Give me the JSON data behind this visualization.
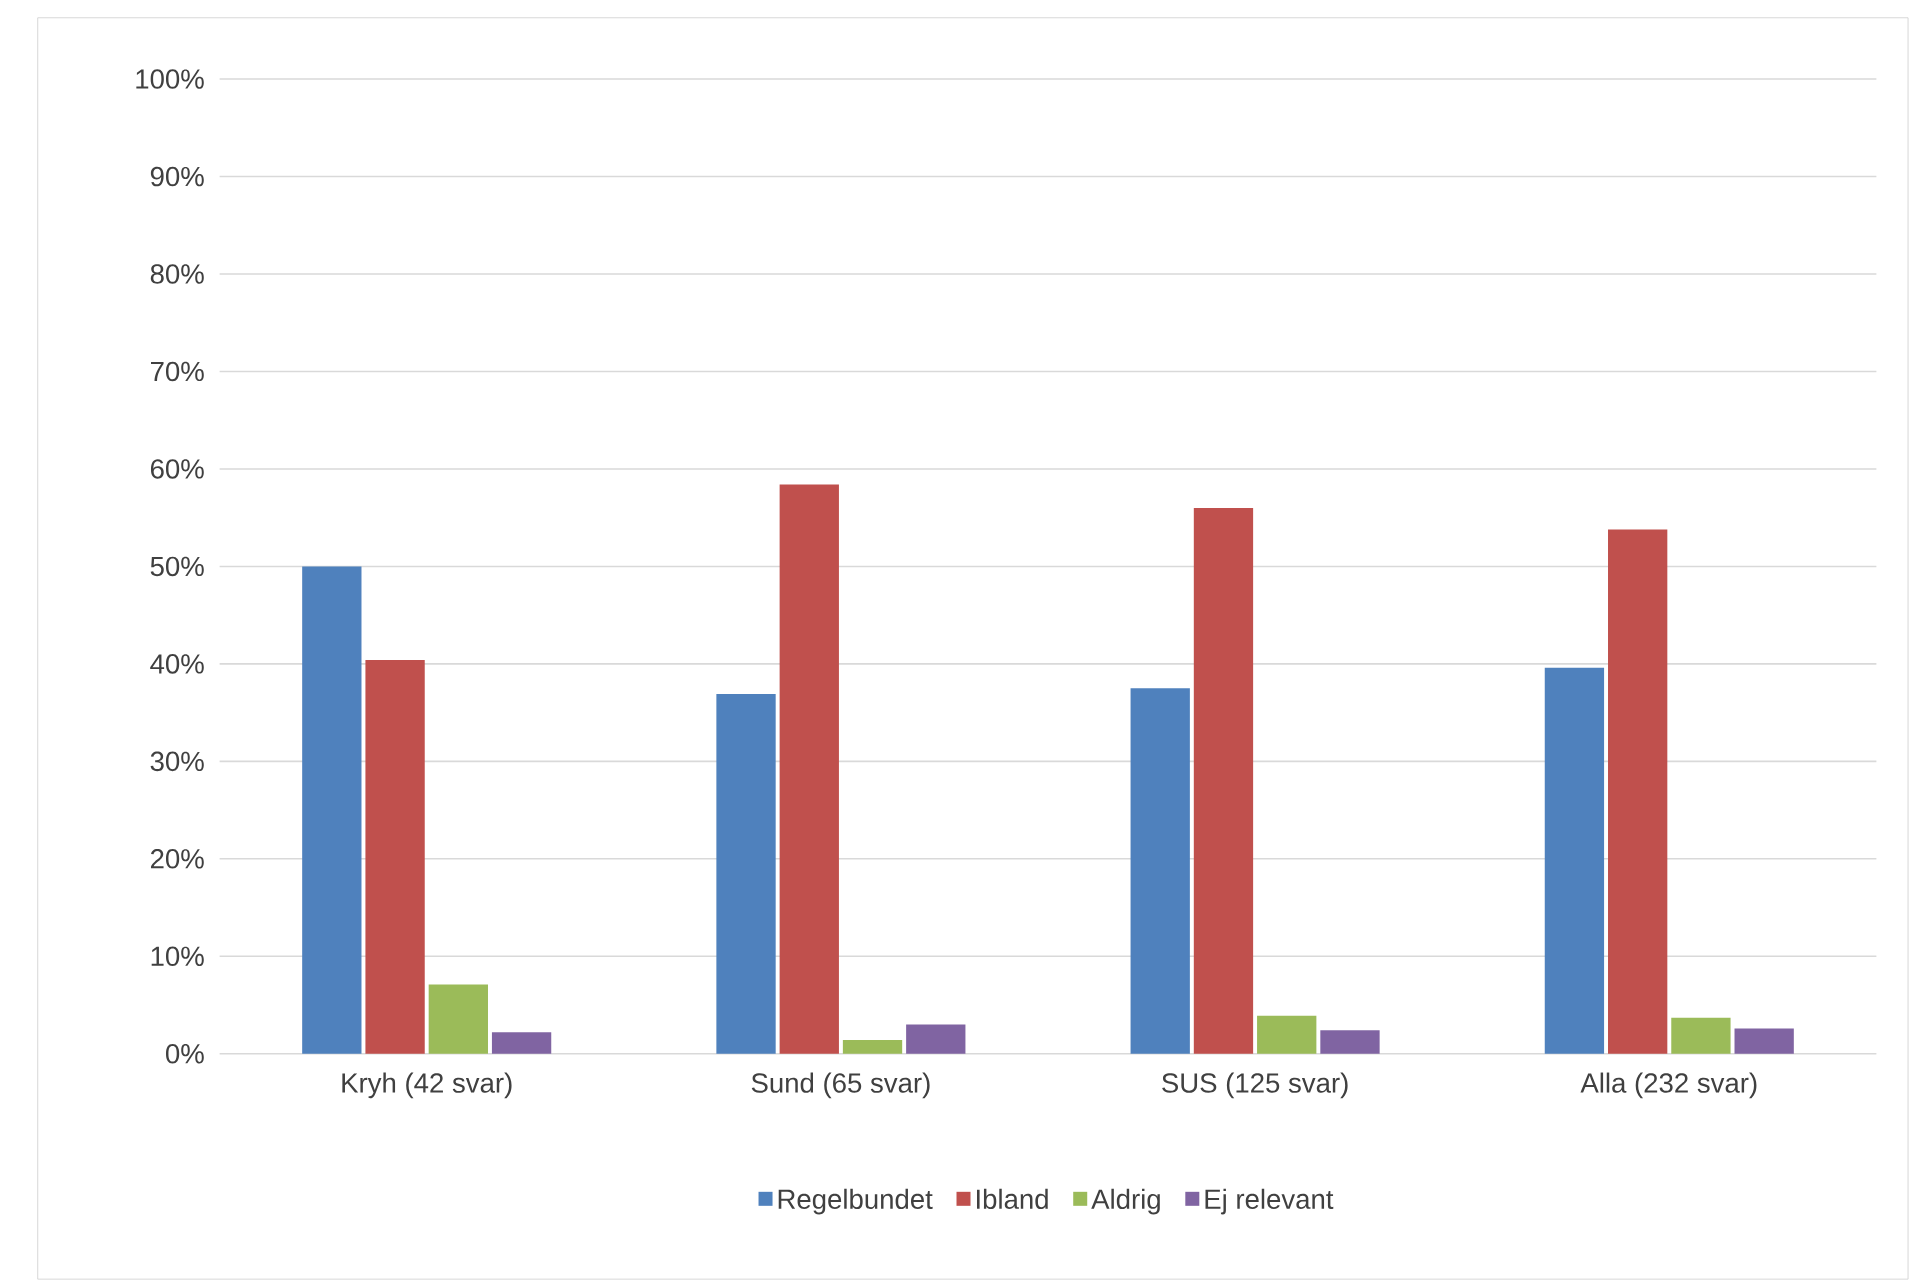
{
  "chart_data": {
    "type": "bar",
    "categories": [
      "Kryh (42 svar)",
      "Sund (65 svar)",
      "SUS (125 svar)",
      "Alla (232 svar)"
    ],
    "series": [
      {
        "name": "Regelbundet",
        "color": "#4f81bd",
        "values": [
          50,
          36.9,
          37.5,
          39.6
        ]
      },
      {
        "name": "Ibland",
        "color": "#c0504d",
        "values": [
          40.4,
          58.4,
          56,
          53.8
        ]
      },
      {
        "name": "Aldrig",
        "color": "#9bbb59",
        "values": [
          7.1,
          1.4,
          3.9,
          3.7
        ]
      },
      {
        "name": "Ej relevant",
        "color": "#8064a2",
        "values": [
          2.2,
          3,
          2.4,
          2.6
        ]
      }
    ],
    "ylim": [
      0,
      100
    ],
    "yticks": [
      {
        "value": 0,
        "label": "0%"
      },
      {
        "value": 10,
        "label": "10%"
      },
      {
        "value": 20,
        "label": "20%"
      },
      {
        "value": 30,
        "label": "30%"
      },
      {
        "value": 40,
        "label": "40%"
      },
      {
        "value": 50,
        "label": "50%"
      },
      {
        "value": 60,
        "label": "60%"
      },
      {
        "value": 70,
        "label": "70%"
      },
      {
        "value": 80,
        "label": "80%"
      },
      {
        "value": 90,
        "label": "90%"
      },
      {
        "value": 100,
        "label": "100%"
      }
    ],
    "grid": "y",
    "legend": "bottom"
  }
}
